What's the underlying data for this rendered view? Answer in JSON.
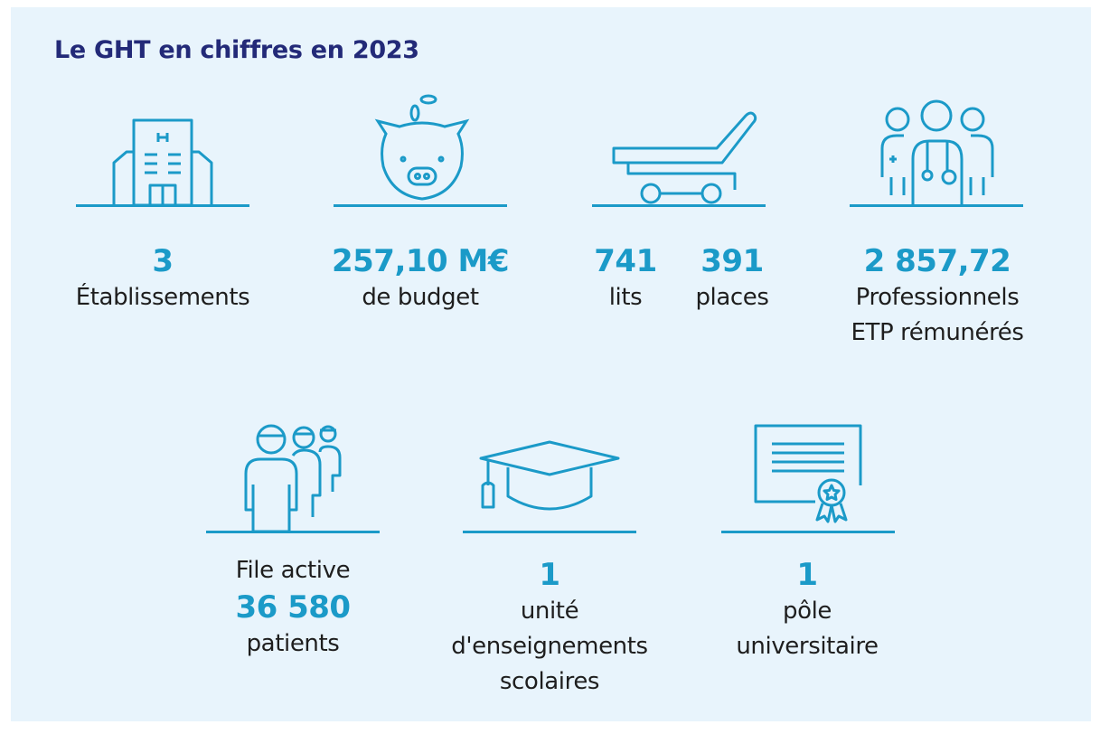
{
  "title": "Le GHT en chiffres en 2023",
  "colors": {
    "background": "#e8f4fc",
    "title": "#232a78",
    "accent": "#1b9ac8",
    "text": "#1e1e1e"
  },
  "stats": {
    "etablissements": {
      "icon": "hospital-building-icon",
      "value": "3",
      "label": "Établissements"
    },
    "budget": {
      "icon": "piggy-bank-icon",
      "value": "257,10 M€",
      "label": "de budget"
    },
    "lits": {
      "icon": "hospital-bed-icon",
      "value": "741",
      "label": "lits"
    },
    "places": {
      "value": "391",
      "label": "places"
    },
    "professionnels": {
      "icon": "medical-staff-icon",
      "value": "2 857,72",
      "label1": "Professionnels",
      "label2": "ETP rémunérés"
    },
    "file_active": {
      "icon": "patients-queue-icon",
      "label_top": "File active",
      "value": "36 580",
      "label": "patients"
    },
    "enseignement": {
      "icon": "graduation-cap-icon",
      "value": "1",
      "label1": "unité",
      "label2": "d'enseignements",
      "label3": "scolaires"
    },
    "pole": {
      "icon": "diploma-certificate-icon",
      "value": "1",
      "label1": "pôle",
      "label2": "universitaire"
    }
  }
}
